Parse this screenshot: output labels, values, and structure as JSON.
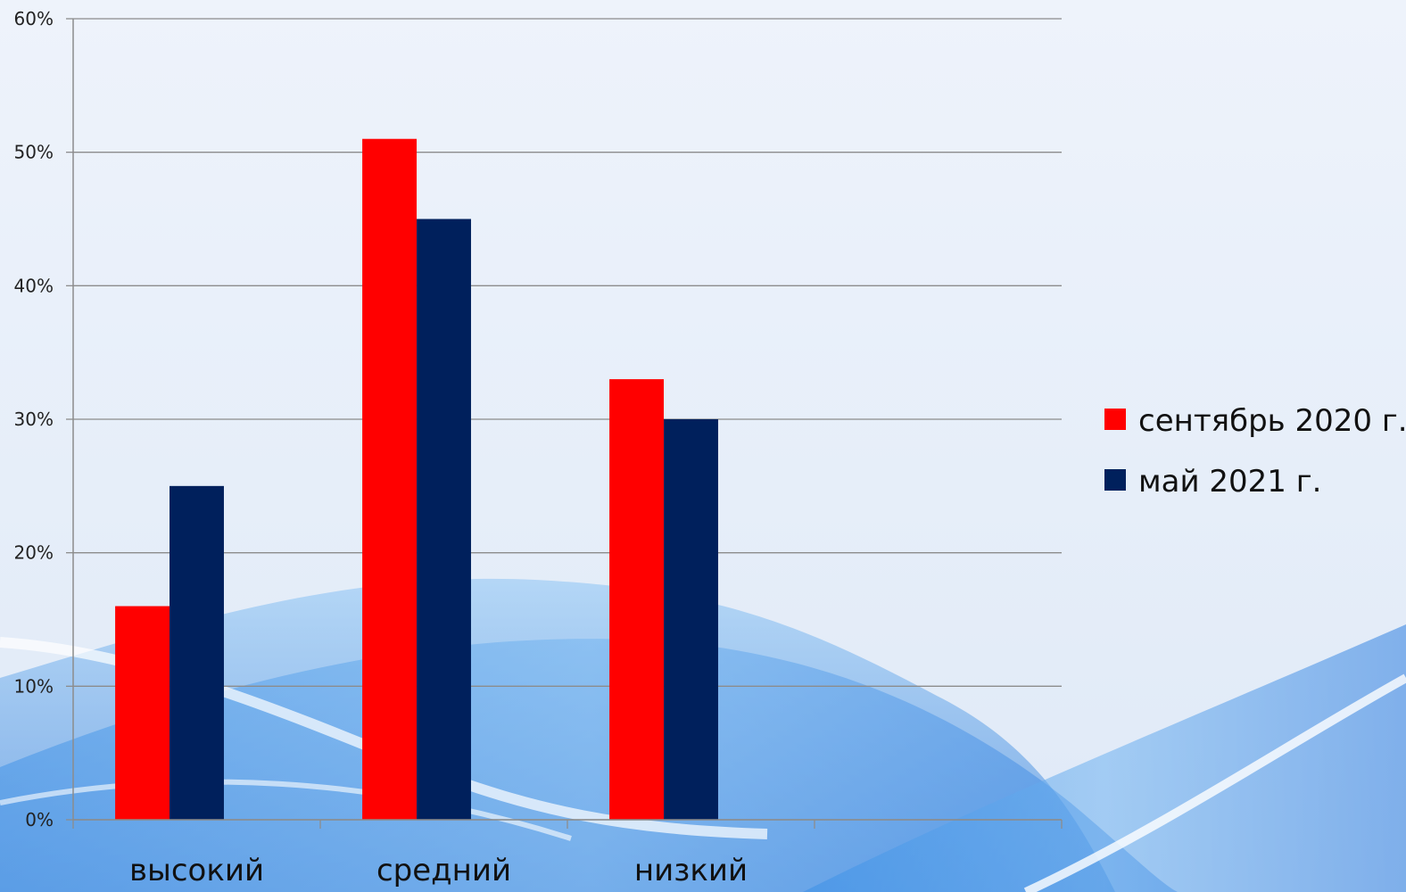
{
  "chart_data": {
    "type": "bar",
    "categories": [
      "высокий",
      "средний",
      "низкий",
      ""
    ],
    "series": [
      {
        "name": "сентябрь 2020 г.",
        "values": [
          16,
          51,
          33,
          null
        ],
        "color": "#ff0000"
      },
      {
        "name": "май 2021 г.",
        "values": [
          25,
          45,
          30,
          null
        ],
        "color": "#00205c"
      }
    ],
    "ylim": [
      0,
      60
    ],
    "yticks": [
      0,
      10,
      20,
      30,
      40,
      50,
      60
    ],
    "y_tick_format": "percent",
    "grid": true,
    "legend_position": "right",
    "gridline_color": "#8c8c8c",
    "axis_color": "#8c8c8c"
  }
}
